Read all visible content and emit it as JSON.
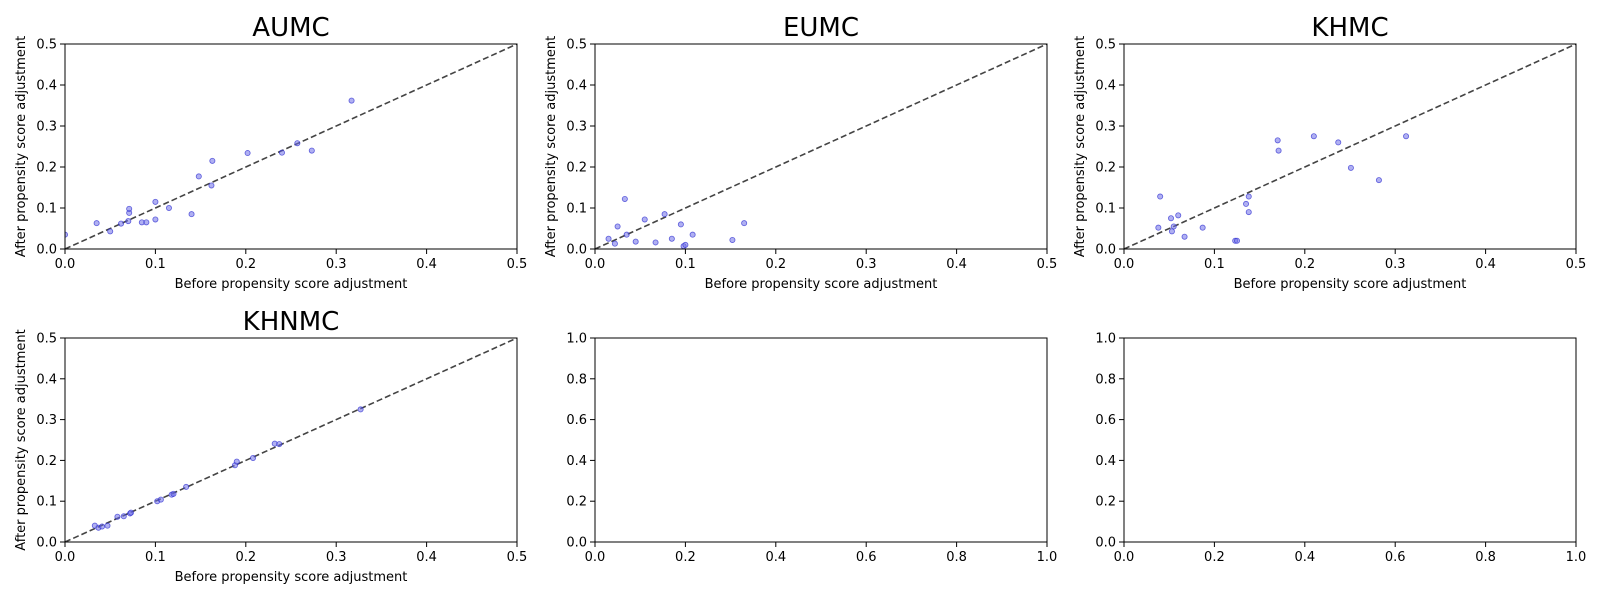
{
  "colors": {
    "point_fill": "#6f6fe8",
    "point_stroke": "#2b2bd0",
    "diagonal": "#444444",
    "axis": "#000000"
  },
  "chart_data": [
    {
      "type": "scatter",
      "title": "AUMC",
      "xlabel": "Before propensity score adjustment",
      "ylabel": "After propensity score adjustment",
      "xlim": [
        0,
        0.5
      ],
      "ylim": [
        0,
        0.5
      ],
      "xticks": [
        "0.0",
        "0.1",
        "0.2",
        "0.3",
        "0.4",
        "0.5"
      ],
      "yticks": [
        "0.0",
        "0.1",
        "0.2",
        "0.3",
        "0.4",
        "0.5"
      ],
      "reference_line": "y = x (dashed)",
      "points": [
        {
          "x": 0.0,
          "y": 0.035
        },
        {
          "x": 0.035,
          "y": 0.063
        },
        {
          "x": 0.05,
          "y": 0.043
        },
        {
          "x": 0.062,
          "y": 0.062
        },
        {
          "x": 0.07,
          "y": 0.068
        },
        {
          "x": 0.071,
          "y": 0.088
        },
        {
          "x": 0.071,
          "y": 0.098
        },
        {
          "x": 0.085,
          "y": 0.065
        },
        {
          "x": 0.09,
          "y": 0.065
        },
        {
          "x": 0.1,
          "y": 0.072
        },
        {
          "x": 0.1,
          "y": 0.115
        },
        {
          "x": 0.115,
          "y": 0.1
        },
        {
          "x": 0.14,
          "y": 0.085
        },
        {
          "x": 0.148,
          "y": 0.177
        },
        {
          "x": 0.162,
          "y": 0.155
        },
        {
          "x": 0.163,
          "y": 0.215
        },
        {
          "x": 0.202,
          "y": 0.234
        },
        {
          "x": 0.24,
          "y": 0.235
        },
        {
          "x": 0.257,
          "y": 0.258
        },
        {
          "x": 0.273,
          "y": 0.24
        },
        {
          "x": 0.317,
          "y": 0.362
        }
      ]
    },
    {
      "type": "scatter",
      "title": "EUMC",
      "xlabel": "Before propensity score adjustment",
      "ylabel": "After propensity score adjustment",
      "xlim": [
        0,
        0.5
      ],
      "ylim": [
        0,
        0.5
      ],
      "xticks": [
        "0.0",
        "0.1",
        "0.2",
        "0.3",
        "0.4",
        "0.5"
      ],
      "yticks": [
        "0.0",
        "0.1",
        "0.2",
        "0.3",
        "0.4",
        "0.5"
      ],
      "reference_line": "y = x (dashed)",
      "points": [
        {
          "x": 0.015,
          "y": 0.025
        },
        {
          "x": 0.022,
          "y": 0.013
        },
        {
          "x": 0.025,
          "y": 0.055
        },
        {
          "x": 0.033,
          "y": 0.122
        },
        {
          "x": 0.035,
          "y": 0.035
        },
        {
          "x": 0.045,
          "y": 0.018
        },
        {
          "x": 0.055,
          "y": 0.072
        },
        {
          "x": 0.067,
          "y": 0.016
        },
        {
          "x": 0.077,
          "y": 0.085
        },
        {
          "x": 0.085,
          "y": 0.025
        },
        {
          "x": 0.095,
          "y": 0.06
        },
        {
          "x": 0.098,
          "y": 0.007
        },
        {
          "x": 0.1,
          "y": 0.01
        },
        {
          "x": 0.108,
          "y": 0.035
        },
        {
          "x": 0.152,
          "y": 0.022
        },
        {
          "x": 0.165,
          "y": 0.063
        }
      ]
    },
    {
      "type": "scatter",
      "title": "KHMC",
      "xlabel": "Before propensity score adjustment",
      "ylabel": "After propensity score adjustment",
      "xlim": [
        0,
        0.5
      ],
      "ylim": [
        0,
        0.5
      ],
      "xticks": [
        "0.0",
        "0.1",
        "0.2",
        "0.3",
        "0.4",
        "0.5"
      ],
      "yticks": [
        "0.0",
        "0.1",
        "0.2",
        "0.3",
        "0.4",
        "0.5"
      ],
      "reference_line": "y = x (dashed)",
      "points": [
        {
          "x": 0.038,
          "y": 0.052
        },
        {
          "x": 0.04,
          "y": 0.128
        },
        {
          "x": 0.052,
          "y": 0.075
        },
        {
          "x": 0.053,
          "y": 0.043
        },
        {
          "x": 0.055,
          "y": 0.055
        },
        {
          "x": 0.06,
          "y": 0.082
        },
        {
          "x": 0.067,
          "y": 0.03
        },
        {
          "x": 0.087,
          "y": 0.052
        },
        {
          "x": 0.123,
          "y": 0.02
        },
        {
          "x": 0.125,
          "y": 0.02
        },
        {
          "x": 0.135,
          "y": 0.11
        },
        {
          "x": 0.138,
          "y": 0.128
        },
        {
          "x": 0.138,
          "y": 0.09
        },
        {
          "x": 0.17,
          "y": 0.265
        },
        {
          "x": 0.171,
          "y": 0.24
        },
        {
          "x": 0.21,
          "y": 0.275
        },
        {
          "x": 0.237,
          "y": 0.26
        },
        {
          "x": 0.251,
          "y": 0.198
        },
        {
          "x": 0.282,
          "y": 0.168
        },
        {
          "x": 0.312,
          "y": 0.275
        }
      ]
    },
    {
      "type": "scatter",
      "title": "KHNMC",
      "xlabel": "Before propensity score adjustment",
      "ylabel": "After propensity score adjustment",
      "xlim": [
        0,
        0.5
      ],
      "ylim": [
        0,
        0.5
      ],
      "xticks": [
        "0.0",
        "0.1",
        "0.2",
        "0.3",
        "0.4",
        "0.5"
      ],
      "yticks": [
        "0.0",
        "0.1",
        "0.2",
        "0.3",
        "0.4",
        "0.5"
      ],
      "reference_line": "y = x (dashed)",
      "points": [
        {
          "x": 0.033,
          "y": 0.04
        },
        {
          "x": 0.037,
          "y": 0.035
        },
        {
          "x": 0.041,
          "y": 0.038
        },
        {
          "x": 0.047,
          "y": 0.04
        },
        {
          "x": 0.058,
          "y": 0.062
        },
        {
          "x": 0.065,
          "y": 0.063
        },
        {
          "x": 0.072,
          "y": 0.07
        },
        {
          "x": 0.073,
          "y": 0.072
        },
        {
          "x": 0.102,
          "y": 0.1
        },
        {
          "x": 0.106,
          "y": 0.104
        },
        {
          "x": 0.118,
          "y": 0.116
        },
        {
          "x": 0.12,
          "y": 0.118
        },
        {
          "x": 0.134,
          "y": 0.135
        },
        {
          "x": 0.188,
          "y": 0.188
        },
        {
          "x": 0.19,
          "y": 0.197
        },
        {
          "x": 0.208,
          "y": 0.206
        },
        {
          "x": 0.232,
          "y": 0.241
        },
        {
          "x": 0.237,
          "y": 0.24
        },
        {
          "x": 0.327,
          "y": 0.325
        }
      ]
    },
    {
      "type": "scatter",
      "title": "",
      "xlabel": "",
      "ylabel": "",
      "xlim": [
        0,
        1
      ],
      "ylim": [
        0,
        1
      ],
      "xticks": [
        "0.0",
        "0.2",
        "0.4",
        "0.6",
        "0.8",
        "1.0"
      ],
      "yticks": [
        "0.0",
        "0.2",
        "0.4",
        "0.6",
        "0.8",
        "1.0"
      ],
      "points": []
    },
    {
      "type": "scatter",
      "title": "",
      "xlabel": "",
      "ylabel": "",
      "xlim": [
        0,
        1
      ],
      "ylim": [
        0,
        1
      ],
      "xticks": [
        "0.0",
        "0.2",
        "0.4",
        "0.6",
        "0.8",
        "1.0"
      ],
      "yticks": [
        "0.0",
        "0.2",
        "0.4",
        "0.6",
        "0.8",
        "1.0"
      ],
      "points": []
    }
  ]
}
